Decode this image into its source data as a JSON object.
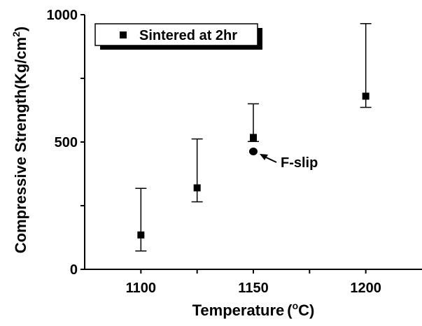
{
  "chart_data": {
    "type": "scatter",
    "title": "",
    "xlabel": "Temperature",
    "xlabel_unit_sup": "o",
    "xlabel_unit": "C",
    "xlabel_open": "(",
    "xlabel_close": ")",
    "ylabel": "Compressive Strength(Kg/cm",
    "ylabel_sup": "2",
    "ylabel_close": ")",
    "xlim": [
      1075,
      1225
    ],
    "ylim": [
      0,
      1000
    ],
    "x_ticks": [
      1100,
      1125,
      1150,
      1175,
      1200
    ],
    "x_tick_labels": [
      "1100",
      "1150",
      "1200"
    ],
    "x_tick_label_values": [
      1100,
      1150,
      1200
    ],
    "y_ticks": [
      0,
      250,
      500,
      750,
      1000
    ],
    "y_tick_labels": [
      "0",
      "500",
      "1000"
    ],
    "y_tick_label_values": [
      0,
      500,
      1000
    ],
    "grid": false,
    "legend_position": "top-left",
    "series": [
      {
        "name": "Sintered at 2hr",
        "marker": "square",
        "color": "#000000",
        "points": [
          {
            "x": 1100,
            "y": 135,
            "ymin": 72,
            "ymax": 318
          },
          {
            "x": 1125,
            "y": 320,
            "ymin": 265,
            "ymax": 512
          },
          {
            "x": 1150,
            "y": 518,
            "ymin": 502,
            "ymax": 650
          },
          {
            "x": 1200,
            "y": 680,
            "ymin": 636,
            "ymax": 965
          }
        ]
      },
      {
        "name": "F-slip",
        "marker": "circle",
        "color": "#000000",
        "in_legend": false,
        "points": [
          {
            "x": 1150,
            "y": 463
          }
        ]
      }
    ],
    "annotations": [
      {
        "text": "F-slip",
        "target_x": 1150,
        "target_y": 463
      }
    ]
  }
}
